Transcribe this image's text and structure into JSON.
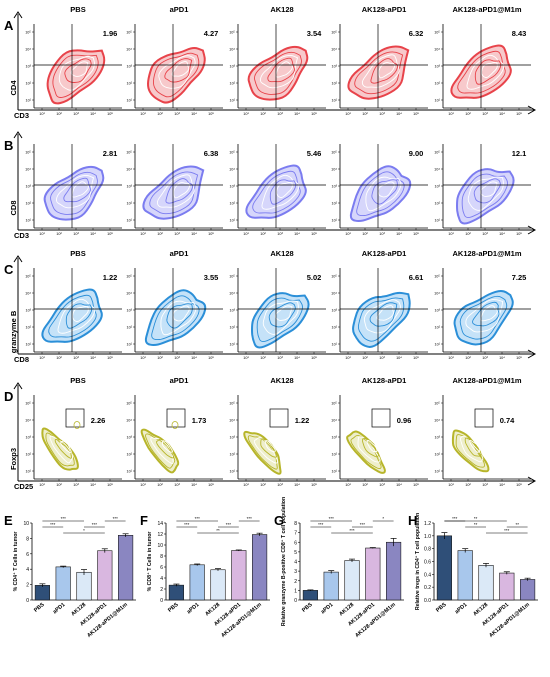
{
  "panel_letters": [
    "A",
    "B",
    "C",
    "D",
    "E",
    "F",
    "G",
    "H"
  ],
  "groups": [
    "PBS",
    "aPD1",
    "AK128",
    "AK128-aPD1",
    "AK128-aPD1@M1m"
  ],
  "flow_rows": [
    {
      "letter": "A",
      "show_titles": true,
      "xlabel": "CD3",
      "ylabel": "CD4",
      "color": "#e8434a",
      "fill": "#f7c9cb",
      "gate": "quadrant",
      "values": [
        "1.96",
        "4.27",
        "3.54",
        "6.32",
        "8.43"
      ]
    },
    {
      "letter": "B",
      "show_titles": false,
      "xlabel": "CD3",
      "ylabel": "CD8",
      "color": "#7b7cf0",
      "fill": "#d6d6fb",
      "gate": "quadrant",
      "values": [
        "2.81",
        "6.38",
        "5.46",
        "9.00",
        "12.1"
      ]
    },
    {
      "letter": "C",
      "show_titles": true,
      "xlabel": "CD8",
      "ylabel": "granzyme B",
      "color": "#2b8fd8",
      "fill": "#c5e2f8",
      "gate": "quadrant",
      "values": [
        "1.22",
        "3.55",
        "5.02",
        "6.61",
        "7.25"
      ]
    },
    {
      "letter": "D",
      "show_titles": true,
      "xlabel": "CD25",
      "ylabel": "Foxp3",
      "color": "#b7b52a",
      "fill": "#eeeecb",
      "gate": "box",
      "values": [
        "2.26",
        "1.73",
        "1.22",
        "0.96",
        "0.74"
      ]
    }
  ],
  "flow_tick_labels": [
    "10¹",
    "10²",
    "10³",
    "10⁴",
    "10⁵"
  ],
  "bar_colors": [
    "#2f4f78",
    "#a8c7ec",
    "#dbe9f7",
    "#d9b7e0",
    "#8a86c1"
  ],
  "chart_data": [
    {
      "letter": "E",
      "type": "bar",
      "ylabel": "% CD4⁺ T Cells in tumor",
      "ylim": [
        0,
        10
      ],
      "yticks": [
        "0",
        "2",
        "4",
        "6",
        "8",
        "10"
      ],
      "categories": [
        "PBS",
        "aPD1",
        "AK128",
        "AK128-aPD1",
        "AK128-aPD1@M1m"
      ],
      "values": [
        1.9,
        4.3,
        3.6,
        6.4,
        8.4
      ],
      "errors": [
        0.2,
        0.1,
        0.35,
        0.25,
        0.2
      ],
      "sig": [
        "***",
        "***",
        "*",
        "***",
        "***"
      ]
    },
    {
      "letter": "F",
      "type": "bar",
      "ylabel": "% CD8⁺ T Cells in tumor",
      "ylim": [
        0,
        14
      ],
      "yticks": [
        "0",
        "2",
        "4",
        "6",
        "8",
        "10",
        "12",
        "14"
      ],
      "categories": [
        "PBS",
        "aPD1",
        "AK128",
        "AK128-aPD1",
        "AK128-aPD1@M1m"
      ],
      "values": [
        2.7,
        6.4,
        5.5,
        9.0,
        11.9
      ],
      "errors": [
        0.2,
        0.15,
        0.2,
        0.1,
        0.25
      ],
      "sig": [
        "***",
        "***",
        "**",
        "***",
        "***"
      ]
    },
    {
      "letter": "G",
      "type": "bar",
      "ylabel": "Relative granzyme B-positive CD8⁺ T cell population",
      "ylim": [
        0,
        8
      ],
      "yticks": [
        "0",
        "1",
        "2",
        "3",
        "4",
        "5",
        "6",
        "7",
        "8"
      ],
      "categories": [
        "PBS",
        "aPD1",
        "AK128",
        "AK128-aPD1",
        "AK128-aPD1@M1m"
      ],
      "values": [
        1.0,
        2.9,
        4.1,
        5.4,
        6.0
      ],
      "errors": [
        0.05,
        0.15,
        0.15,
        0.05,
        0.4
      ],
      "sig": [
        "***",
        "***",
        "***",
        "***",
        "*"
      ]
    },
    {
      "letter": "H",
      "type": "bar",
      "ylabel": "Relative tregs in CD4⁺ T cell population",
      "ylim": [
        0,
        1.2
      ],
      "yticks": [
        "0.0",
        "0.2",
        "0.4",
        "0.6",
        "0.8",
        "1.0",
        "1.2"
      ],
      "categories": [
        "PBS",
        "aPD1",
        "AK128",
        "AK128-aPD1",
        "AK128-aPD1@M1m"
      ],
      "values": [
        1.0,
        0.77,
        0.54,
        0.42,
        0.32
      ],
      "errors": [
        0.05,
        0.03,
        0.03,
        0.02,
        0.02
      ],
      "sig": [
        "***",
        "**",
        "***",
        "**",
        "**"
      ]
    }
  ]
}
